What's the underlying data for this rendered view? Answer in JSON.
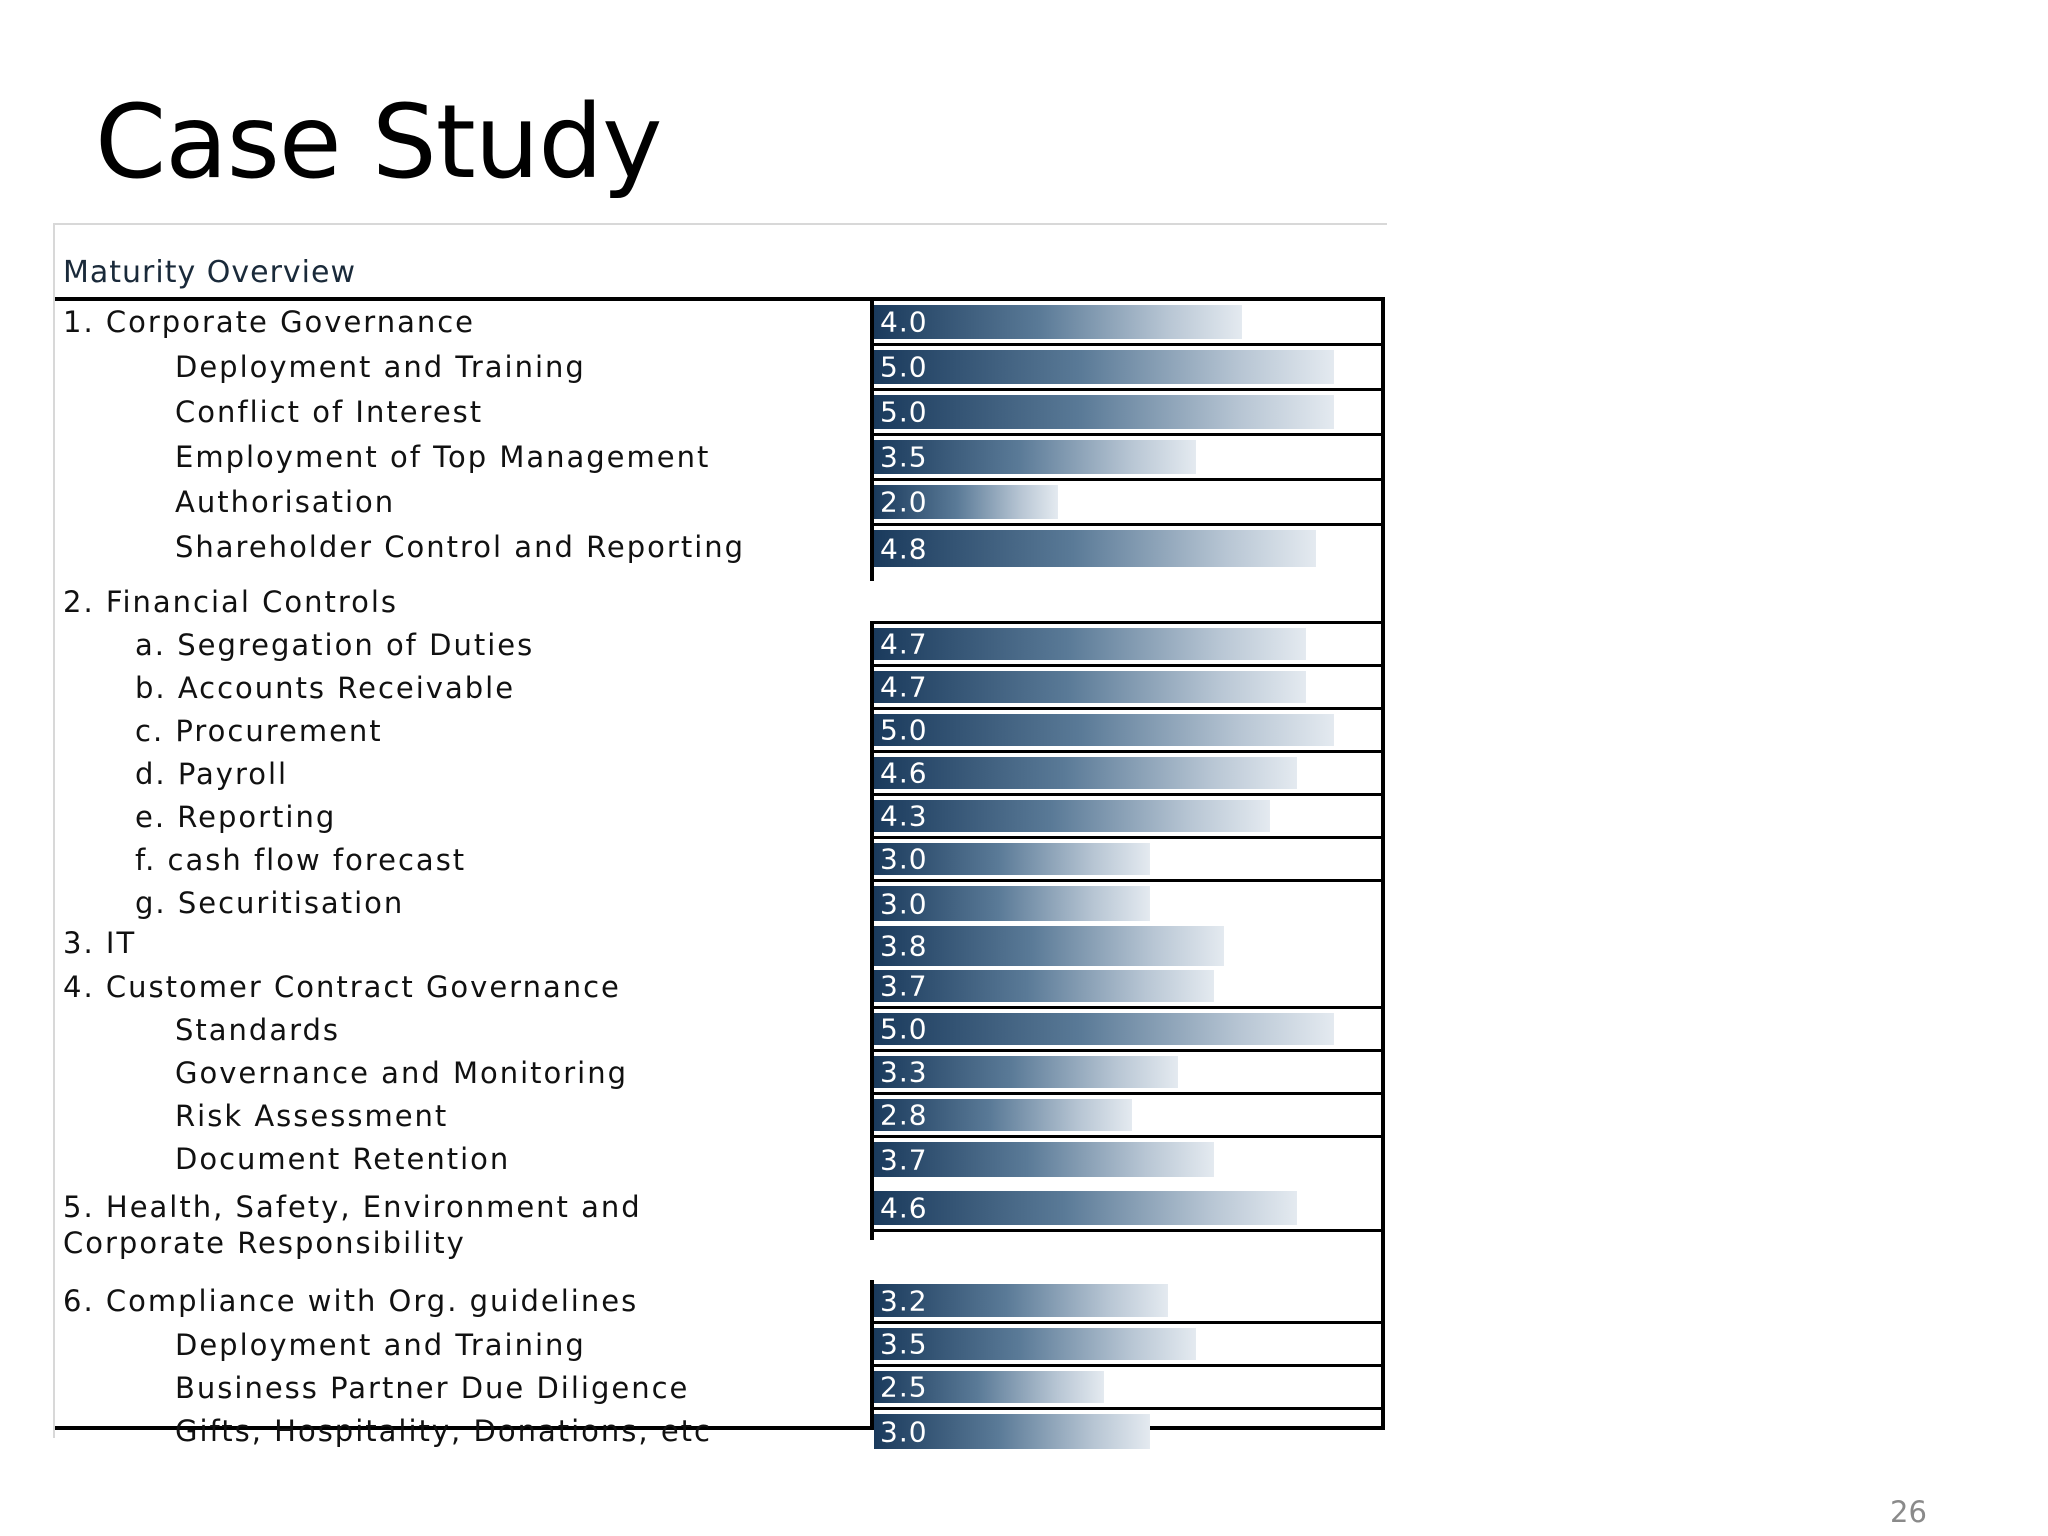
{
  "slide": {
    "title": "Case Study",
    "page_number": "26"
  },
  "chart_data": {
    "type": "bar",
    "orientation": "horizontal",
    "title": "Maturity Overview",
    "xlim": [
      0,
      5.0
    ],
    "show_value_labels": true,
    "groups": [
      {
        "label": "1. Corporate Governance",
        "value": 4.0,
        "items": [
          {
            "label": "Deployment and Training",
            "value": 5.0
          },
          {
            "label": "Conflict of Interest",
            "value": 5.0
          },
          {
            "label": "Employment of Top Management",
            "value": 3.5
          },
          {
            "label": "Authorisation",
            "value": 2.0
          },
          {
            "label": "Shareholder Control and Reporting",
            "value": 4.8
          }
        ]
      },
      {
        "label": "2. Financial Controls",
        "value": null,
        "items": [
          {
            "label": "a. Segregation of Duties",
            "value": 4.7
          },
          {
            "label": "b. Accounts Receivable",
            "value": 4.7
          },
          {
            "label": "c. Procurement",
            "value": 5.0
          },
          {
            "label": "d. Payroll",
            "value": 4.6
          },
          {
            "label": "e. Reporting",
            "value": 4.3
          },
          {
            "label": "f. cash flow forecast",
            "value": 3.0
          },
          {
            "label": "g. Securitisation",
            "value": 3.0
          }
        ]
      },
      {
        "label": "3. IT",
        "value": 3.8,
        "items": []
      },
      {
        "label": "4. Customer Contract Governance",
        "value": 3.7,
        "items": [
          {
            "label": "Standards",
            "value": 5.0
          },
          {
            "label": "Governance and Monitoring",
            "value": 3.3
          },
          {
            "label": "Risk Assessment",
            "value": 2.8
          },
          {
            "label": "Document Retention",
            "value": 3.7
          }
        ]
      },
      {
        "label": "5. Health, Safety, Environment and Corporate Responsibility",
        "value": 4.6,
        "items": []
      },
      {
        "label": "6. Compliance with Org. guidelines",
        "value": 3.2,
        "items": [
          {
            "label": "Deployment and Training",
            "value": 3.5
          },
          {
            "label": "Business Partner Due Diligence",
            "value": 2.5
          },
          {
            "label": "Gifts, Hospitality, Donations, etc",
            "value": 3.0
          }
        ]
      }
    ]
  }
}
